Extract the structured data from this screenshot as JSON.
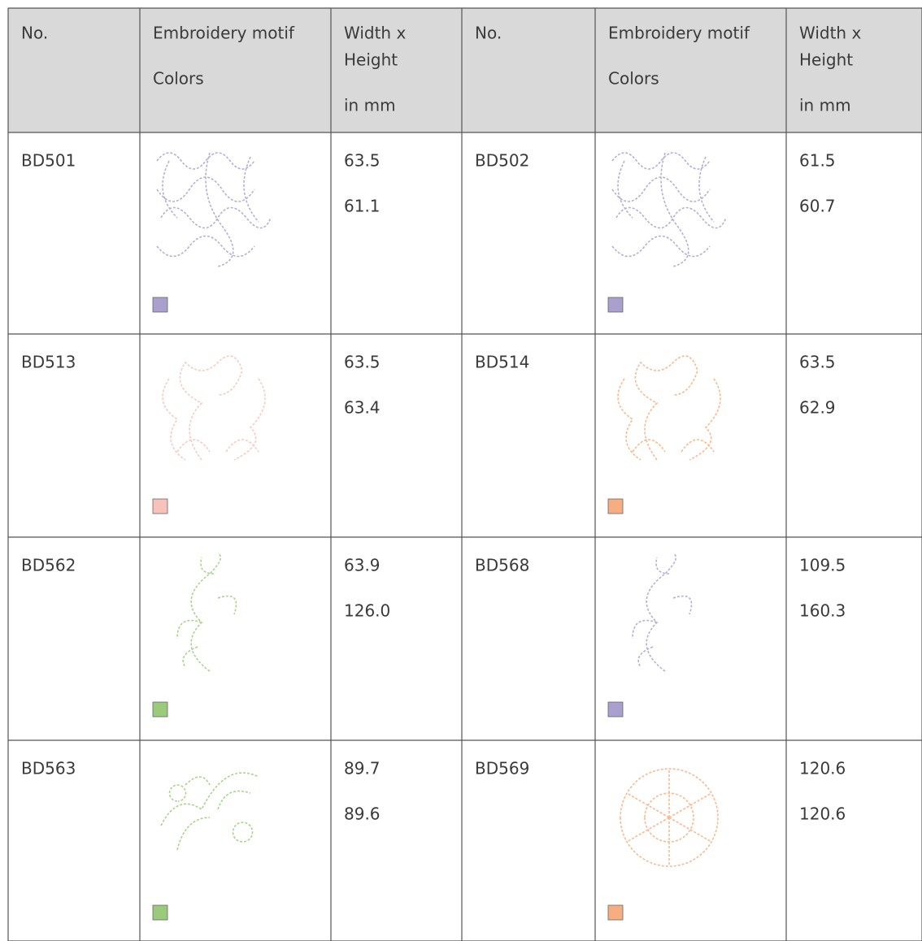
{
  "table": {
    "header": [
      [
        "No."
      ],
      [
        "Embroidery motif",
        "Colors"
      ],
      [
        "Width x",
        "Height",
        "in mm"
      ]
    ],
    "rows": [
      [
        {
          "no": "BD501",
          "color": "#a9a0d0",
          "width": "63.5",
          "height": "61.1"
        },
        {
          "no": "BD502",
          "color": "#a9a0d0",
          "width": "61.5",
          "height": "60.7"
        }
      ],
      [
        {
          "no": "BD513",
          "color": "#f6c2ba",
          "width": "63.5",
          "height": "63.4"
        },
        {
          "no": "BD514",
          "color": "#f6ae80",
          "width": "63.5",
          "height": "62.9"
        }
      ],
      [
        {
          "no": "BD562",
          "color": "#9acb7a",
          "width": "63.9",
          "height": "126.0"
        },
        {
          "no": "BD568",
          "color": "#a9a0d0",
          "width": "109.5",
          "height": "160.3"
        }
      ],
      [
        {
          "no": "BD563",
          "color": "#9acb7a",
          "width": "89.7",
          "height": "89.6"
        },
        {
          "no": "BD569",
          "color": "#f6ae80",
          "width": "120.6",
          "height": "120.6"
        }
      ]
    ]
  }
}
